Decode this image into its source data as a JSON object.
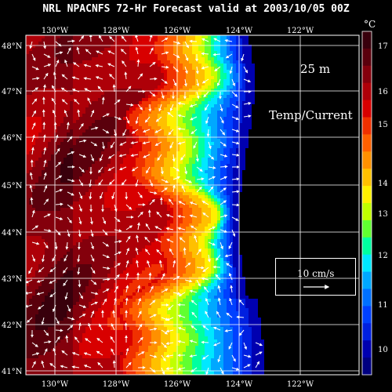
{
  "title": "NRL NPACNFS 72-Hr Forecast valid at 2003/10/05 00Z",
  "units_label": "°C",
  "depth_label": "25 m",
  "field_label": "Temp/Current",
  "vector_reference": {
    "label": "10 cm/s",
    "speed_cm_s": 10
  },
  "map": {
    "lon_ticks": [
      "130°W",
      "128°W",
      "126°W",
      "124°W",
      "122°W"
    ],
    "lat_ticks": [
      "48°N",
      "47°N",
      "46°N",
      "45°N",
      "44°N",
      "43°N",
      "42°N",
      "41°N"
    ]
  },
  "colorbar": {
    "ticks": [
      "17",
      "16",
      "15",
      "14",
      "13",
      "12",
      "11",
      "10"
    ],
    "colors": [
      "#38000c",
      "#5a000c",
      "#84000c",
      "#ae0008",
      "#d80000",
      "#f03000",
      "#ff6000",
      "#ff9000",
      "#ffc000",
      "#fff000",
      "#c0ff00",
      "#60ff30",
      "#00ffa0",
      "#00e8ff",
      "#00a8ff",
      "#0070ff",
      "#0040ff",
      "#0020e0",
      "#0000b0",
      "#000080"
    ]
  },
  "colors": {
    "land": "#000000",
    "grid": "#ffffff",
    "arrow": "#ffffff"
  }
}
